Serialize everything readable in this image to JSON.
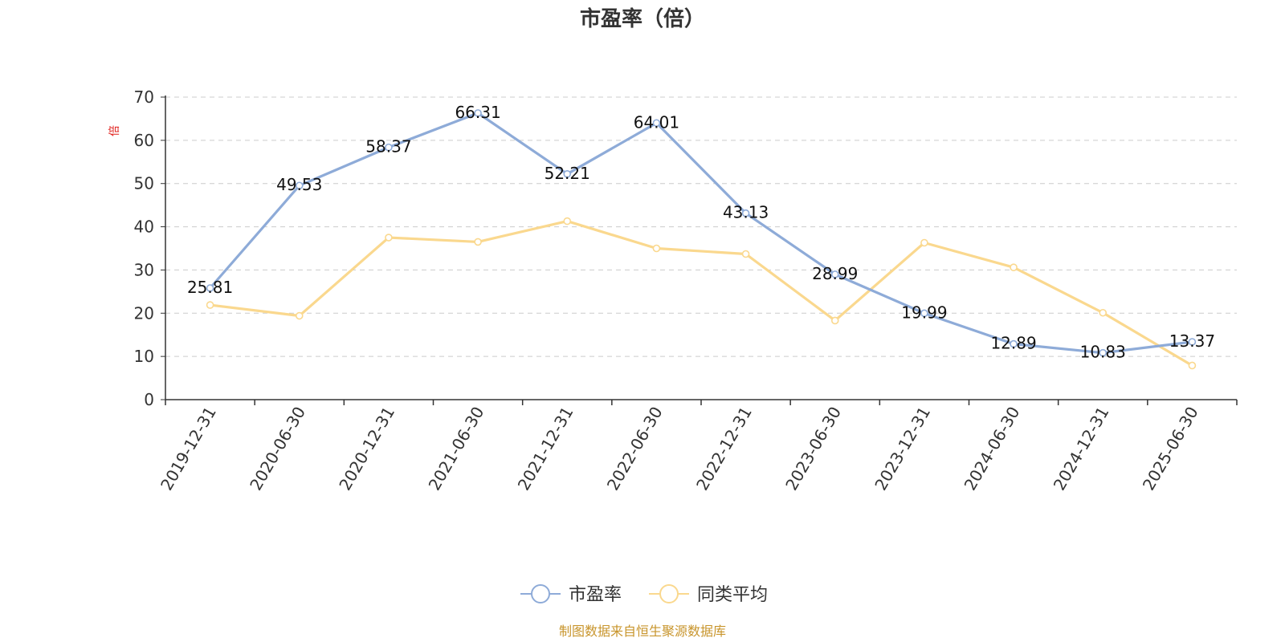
{
  "colors": {
    "series_1": "#8eabd8",
    "series_2": "#fad88e",
    "grid": "#cccccc",
    "axis": "#333333",
    "source": "#c8952c"
  },
  "chart_data": {
    "type": "line",
    "title": "市盈率（倍）",
    "xlabel": "",
    "ylabel": "倍",
    "ylim": [
      0,
      70
    ],
    "y_ticks": [
      0,
      10,
      20,
      30,
      40,
      50,
      60,
      70
    ],
    "grid": true,
    "legend_position": "bottom",
    "categories": [
      "2019-12-31",
      "2020-06-30",
      "2020-12-31",
      "2021-06-30",
      "2021-12-31",
      "2022-06-30",
      "2022-12-31",
      "2023-06-30",
      "2023-12-31",
      "2024-06-30",
      "2024-12-31",
      "2025-06-30"
    ],
    "series": [
      {
        "name": "市盈率",
        "values": [
          25.81,
          49.53,
          58.37,
          66.31,
          52.21,
          64.01,
          43.13,
          28.99,
          19.99,
          12.89,
          10.83,
          13.37
        ],
        "labels": [
          "25.81",
          "49.53",
          "58.37",
          "66.31",
          "52.21",
          "64.01",
          "43.13",
          "28.99",
          "19.99",
          "12.89",
          "10.83",
          "13.37"
        ]
      },
      {
        "name": "同类平均",
        "values": [
          21.9,
          19.4,
          37.5,
          36.5,
          41.3,
          35.0,
          33.7,
          18.3,
          36.3,
          30.6,
          20.1,
          7.9
        ]
      }
    ],
    "source": "制图数据来自恒生聚源数据库"
  }
}
